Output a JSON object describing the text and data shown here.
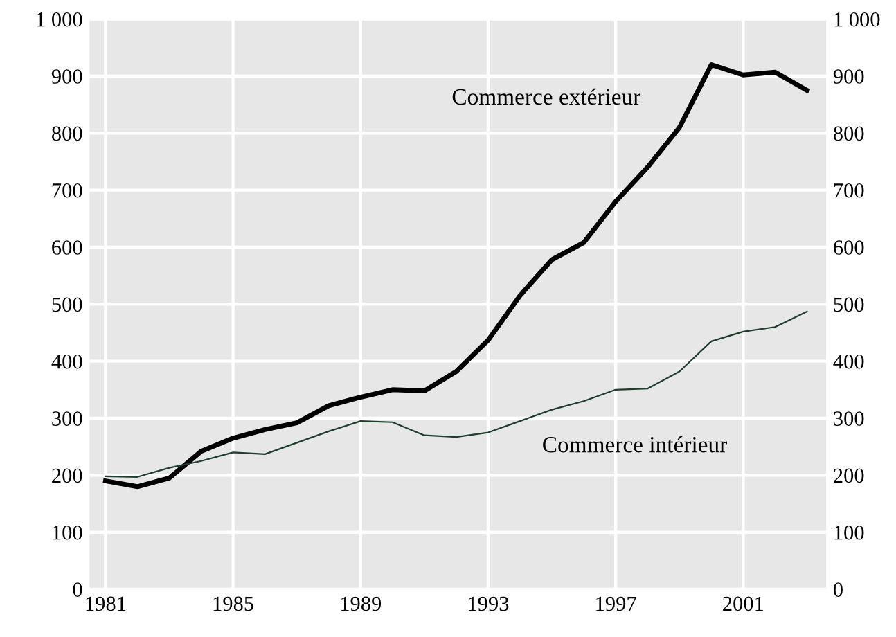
{
  "chart_data": {
    "type": "line",
    "x": [
      1981,
      1982,
      1983,
      1984,
      1985,
      1986,
      1987,
      1988,
      1989,
      1990,
      1991,
      1992,
      1993,
      1994,
      1995,
      1996,
      1997,
      1998,
      1999,
      2000,
      2001,
      2002,
      2003
    ],
    "series": [
      {
        "name": "Commerce extérieur",
        "color": "#000000",
        "values": [
          190,
          180,
          195,
          242,
          265,
          280,
          292,
          322,
          337,
          350,
          348,
          382,
          437,
          515,
          578,
          608,
          680,
          740,
          810,
          920,
          902,
          907,
          875
        ]
      },
      {
        "name": "Commerce intérieur",
        "color": "#1f3d2e",
        "values": [
          198,
          197,
          213,
          225,
          240,
          237,
          257,
          277,
          295,
          293,
          270,
          267,
          275,
          295,
          315,
          330,
          350,
          352,
          382,
          435,
          452,
          460,
          487
        ]
      }
    ],
    "xlim": [
      1980.5,
      2003.6
    ],
    "xticks": [
      1981,
      1985,
      1989,
      1993,
      1997,
      2001
    ],
    "ylim": [
      0,
      1000
    ],
    "yticks": [
      0,
      100,
      200,
      300,
      400,
      500,
      600,
      700,
      800,
      900,
      {
        "value": 1000,
        "label": "1 000"
      }
    ],
    "y2lim": [
      0,
      1000
    ],
    "y2ticks": [
      0,
      100,
      200,
      300,
      400,
      500,
      600,
      700,
      800,
      900,
      {
        "value": 1000,
        "label": "1 000"
      }
    ],
    "grid": true,
    "marker": "none",
    "line_style": "solid"
  }
}
